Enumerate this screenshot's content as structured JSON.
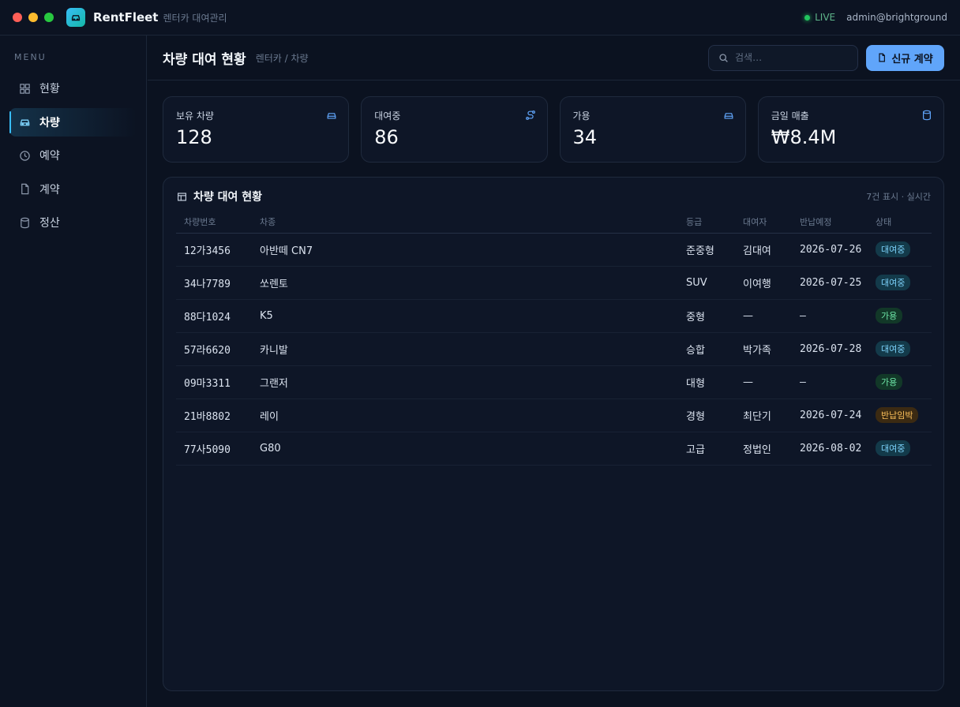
{
  "window": {
    "app_name": "RentFleet",
    "app_subtitle": "렌터카 대여관리",
    "status": "LIVE",
    "user": "admin@brightground"
  },
  "sidebar": {
    "menu_title": "MENU",
    "items": [
      {
        "label": "현황",
        "icon": "grid-icon",
        "active": false
      },
      {
        "label": "차량",
        "icon": "car-icon",
        "active": true
      },
      {
        "label": "예약",
        "icon": "clock-icon",
        "active": false
      },
      {
        "label": "계약",
        "icon": "document-icon",
        "active": false
      },
      {
        "label": "정산",
        "icon": "database-icon",
        "active": false
      }
    ]
  },
  "header": {
    "title": "차량 대여 현황",
    "breadcrumb": "렌터카 / 차량",
    "search_placeholder": "검색…",
    "new_button": "신규 계약"
  },
  "stats": [
    {
      "label": "보유 차량",
      "value": "128",
      "icon": "car-icon"
    },
    {
      "label": "대여중",
      "value": "86",
      "icon": "route-icon"
    },
    {
      "label": "가용",
      "value": "34",
      "icon": "car-icon"
    },
    {
      "label": "금일 매출",
      "value": "₩8.4M",
      "icon": "database-icon"
    }
  ],
  "table": {
    "title": "차량 대여 현황",
    "meta": "7건 표시 · 실시간",
    "columns": [
      "차량번호",
      "차종",
      "등급",
      "대여자",
      "반납예정",
      "상태"
    ],
    "rows": [
      {
        "plate": "12가3456",
        "model": "아반떼 CN7",
        "grade": "준중형",
        "renter": "김대여",
        "return": "2026-07-26",
        "status": "대여중",
        "kind": "rent"
      },
      {
        "plate": "34나7789",
        "model": "쏘렌토",
        "grade": "SUV",
        "renter": "이여행",
        "return": "2026-07-25",
        "status": "대여중",
        "kind": "rent"
      },
      {
        "plate": "88다1024",
        "model": "K5",
        "grade": "중형",
        "renter": "—",
        "return": "–",
        "status": "가용",
        "kind": "avail"
      },
      {
        "plate": "57라6620",
        "model": "카니발",
        "grade": "승합",
        "renter": "박가족",
        "return": "2026-07-28",
        "status": "대여중",
        "kind": "rent"
      },
      {
        "plate": "09마3311",
        "model": "그랜저",
        "grade": "대형",
        "renter": "—",
        "return": "–",
        "status": "가용",
        "kind": "avail"
      },
      {
        "plate": "21바8802",
        "model": "레이",
        "grade": "경형",
        "renter": "최단기",
        "return": "2026-07-24",
        "status": "반납임박",
        "kind": "due"
      },
      {
        "plate": "77사5090",
        "model": "G80",
        "grade": "고급",
        "renter": "정법인",
        "return": "2026-08-02",
        "status": "대여중",
        "kind": "rent"
      }
    ]
  },
  "colors": {
    "accent": "#60a5fa",
    "rent": "#7dd3fc",
    "available": "#6ee7a8",
    "due": "#fbbf5a"
  }
}
